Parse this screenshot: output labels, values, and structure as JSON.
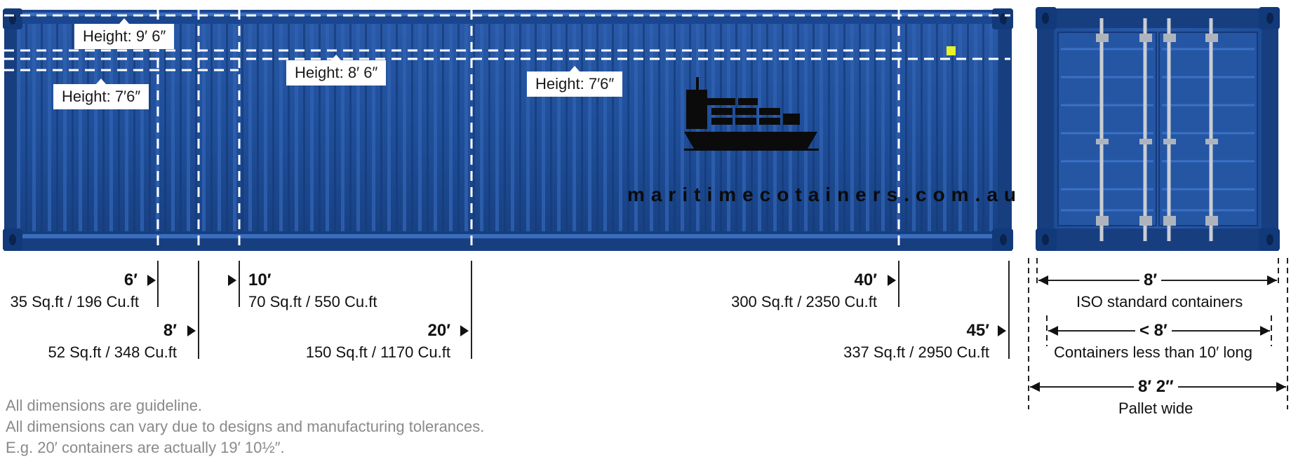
{
  "height_labels": [
    {
      "id": "9-6",
      "text": "Height: 9′ 6″"
    },
    {
      "id": "8-6",
      "text": "Height: 8′ 6″"
    },
    {
      "id": "7-6a",
      "text": "Height: 7′6″"
    },
    {
      "id": "7-6b",
      "text": "Height: 7′6″"
    }
  ],
  "brand": {
    "watermark": "maritimecotainers.com.au",
    "ship_icon": "cargo-ship-icon"
  },
  "lengths": [
    {
      "id": "6",
      "length": "6′",
      "capacity": "35 Sq.ft / 196 Cu.ft"
    },
    {
      "id": "8",
      "length": "8′",
      "capacity": "52 Sq.ft / 348 Cu.ft"
    },
    {
      "id": "10",
      "length": "10′",
      "capacity": "70 Sq.ft / 550 Cu.ft"
    },
    {
      "id": "20",
      "length": "20′",
      "capacity": "150 Sq.ft / 1170 Cu.ft"
    },
    {
      "id": "40",
      "length": "40′",
      "capacity": "300 Sq.ft / 2350 Cu.ft"
    },
    {
      "id": "45",
      "length": "45′",
      "capacity": "337 Sq.ft / 2950 Cu.ft"
    }
  ],
  "widths": [
    {
      "id": "iso",
      "width": "8′",
      "desc": "ISO standard containers"
    },
    {
      "id": "small",
      "width": "< 8′",
      "desc": "Containers less than 10′ long"
    },
    {
      "id": "pallet",
      "width": "8′ 2″",
      "desc": "Pallet wide"
    }
  ],
  "notes": [
    "All dimensions are guideline.",
    "All dimensions can vary due to designs and manufacturing tolerances.",
    "E.g. 20′ containers are actually 19′ 10½″."
  ],
  "colors": {
    "container_blue": "#1f4f9c",
    "container_dark": "#123a7a",
    "indicator": "#e6f12a"
  }
}
